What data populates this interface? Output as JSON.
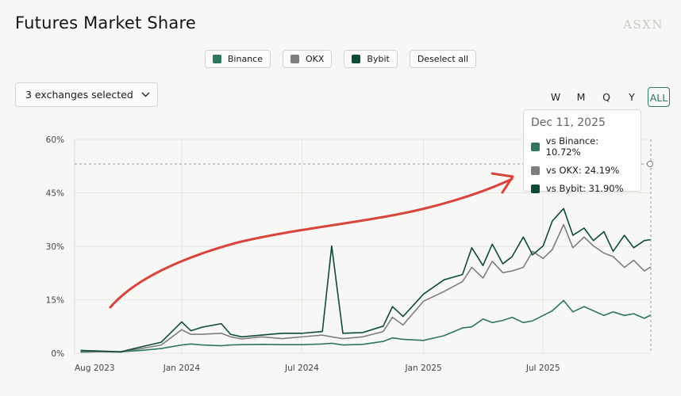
{
  "header": {
    "title": "Futures Market Share",
    "brand": "ASXN"
  },
  "legend": {
    "items": [
      {
        "label": "Binance",
        "color": "#2f7560"
      },
      {
        "label": "OKX",
        "color": "#7e7e7e"
      },
      {
        "label": "Bybit",
        "color": "#0d4a37"
      }
    ],
    "deselect_label": "Deselect all"
  },
  "selector": {
    "label": "3 exchanges selected",
    "icon": "chevron-down-icon"
  },
  "ranges": {
    "items": [
      "W",
      "M",
      "Q",
      "Y",
      "ALL"
    ],
    "active": "ALL"
  },
  "tooltip": {
    "date": "Dec 11, 2025",
    "rows": [
      {
        "label": "vs Binance: 10.72%",
        "color": "#2f7560"
      },
      {
        "label": "vs OKX: 24.19%",
        "color": "#7e7e7e"
      },
      {
        "label": "vs Bybit: 31.90%",
        "color": "#0d4a37"
      }
    ]
  },
  "chart_data": {
    "type": "line",
    "title": "Futures Market Share",
    "x_ticks": [
      "Aug 2023",
      "Jan 2024",
      "Jul 2024",
      "Jan 2025",
      "Jul 2025"
    ],
    "y_ticks": [
      "0%",
      "15%",
      "30%",
      "45%",
      "60%"
    ],
    "ylim": [
      0,
      60
    ],
    "grid": true,
    "x_dates": [
      "2023-08-01",
      "2023-09-01",
      "2023-10-01",
      "2023-11-01",
      "2023-12-01",
      "2024-01-01",
      "2024-01-15",
      "2024-02-01",
      "2024-03-01",
      "2024-03-15",
      "2024-04-01",
      "2024-05-01",
      "2024-06-01",
      "2024-07-01",
      "2024-08-01",
      "2024-08-15",
      "2024-09-01",
      "2024-10-01",
      "2024-11-01",
      "2024-11-15",
      "2024-12-01",
      "2025-01-01",
      "2025-02-01",
      "2025-03-01",
      "2025-03-15",
      "2025-04-01",
      "2025-04-15",
      "2025-05-01",
      "2025-05-15",
      "2025-06-01",
      "2025-06-15",
      "2025-07-01",
      "2025-07-15",
      "2025-08-01",
      "2025-08-15",
      "2025-09-01",
      "2025-09-15",
      "2025-10-01",
      "2025-10-15",
      "2025-11-01",
      "2025-11-15",
      "2025-12-01",
      "2025-12-11"
    ],
    "series": [
      {
        "name": "Binance",
        "color": "#2f7560",
        "values": [
          0.3,
          0.4,
          0.4,
          0.8,
          1.3,
          2.3,
          2.6,
          2.3,
          2.1,
          2.3,
          2.4,
          2.5,
          2.4,
          2.4,
          2.6,
          2.8,
          2.3,
          2.5,
          3.3,
          4.3,
          3.9,
          3.6,
          4.9,
          7.1,
          7.4,
          9.6,
          8.6,
          9.2,
          10.1,
          8.6,
          9.1,
          10.6,
          11.9,
          14.8,
          11.6,
          13.1,
          11.9,
          10.6,
          11.6,
          10.6,
          11.1,
          9.8,
          10.7
        ]
      },
      {
        "name": "OKX",
        "color": "#7e7e7e",
        "values": [
          0.6,
          0.4,
          0.3,
          1.3,
          2.3,
          6.6,
          5.3,
          5.3,
          5.6,
          4.6,
          4.0,
          4.6,
          4.1,
          4.6,
          5.1,
          4.6,
          4.1,
          4.6,
          6.1,
          10.1,
          7.9,
          14.6,
          17.3,
          20.1,
          24.1,
          21.1,
          25.8,
          22.6,
          23.1,
          24.1,
          28.6,
          26.6,
          29.1,
          36.1,
          29.6,
          32.6,
          30.1,
          28.1,
          27.1,
          24.1,
          26.1,
          23.1,
          24.2
        ]
      },
      {
        "name": "Bybit",
        "color": "#0d4a37",
        "values": [
          0.8,
          0.6,
          0.4,
          1.8,
          3.1,
          8.8,
          6.3,
          7.3,
          8.3,
          5.3,
          4.6,
          5.1,
          5.6,
          5.6,
          6.1,
          30.1,
          5.6,
          5.8,
          7.6,
          13.1,
          10.3,
          16.6,
          20.6,
          22.1,
          29.6,
          24.6,
          30.6,
          25.1,
          27.1,
          32.6,
          27.6,
          30.1,
          37.1,
          40.6,
          33.1,
          35.1,
          31.6,
          34.1,
          28.6,
          33.1,
          29.6,
          31.6,
          31.9
        ]
      }
    ],
    "annotations": [
      "hand-drawn red arrow pointing to tooltip",
      "dashed crosshair at latest point"
    ]
  }
}
